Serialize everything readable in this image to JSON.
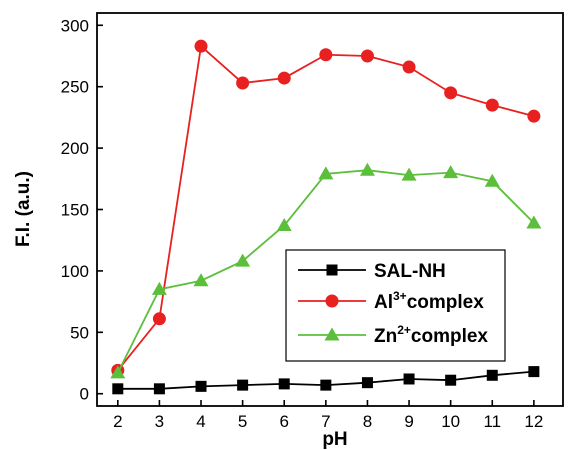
{
  "chart_data": {
    "type": "line",
    "xlabel": "pH",
    "ylabel": "F.I. (a.u.)",
    "xlim": [
      1.5,
      12.7
    ],
    "ylim": [
      -10,
      310
    ],
    "x_ticks": [
      2,
      3,
      4,
      5,
      6,
      7,
      8,
      9,
      10,
      11,
      12
    ],
    "y_ticks": [
      0,
      50,
      100,
      150,
      200,
      250,
      300
    ],
    "grid": false,
    "legend_position": "bottom-right",
    "series": [
      {
        "name": "SAL-NH",
        "marker": "square",
        "color": "#000000",
        "x": [
          2,
          3,
          4,
          5,
          6,
          7,
          8,
          9,
          10,
          11,
          12
        ],
        "y": [
          4,
          4,
          6,
          7,
          8,
          7,
          9,
          12,
          11,
          15,
          18
        ]
      },
      {
        "name": "Al3+complex",
        "legend_base": "Al",
        "legend_sup": "3+",
        "legend_rest": "complex",
        "marker": "circle",
        "color": "#e8201f",
        "x": [
          2,
          3,
          4,
          5,
          6,
          7,
          8,
          9,
          10,
          11,
          12
        ],
        "y": [
          19,
          61,
          283,
          253,
          257,
          276,
          275,
          266,
          245,
          235,
          226
        ]
      },
      {
        "name": "Zn2+complex",
        "legend_base": "Zn",
        "legend_sup": "2+",
        "legend_rest": "complex",
        "marker": "triangle",
        "color": "#5cbf3c",
        "x": [
          2,
          3,
          4,
          5,
          6,
          7,
          8,
          9,
          10,
          11,
          12
        ],
        "y": [
          17,
          85,
          92,
          108,
          137,
          179,
          182,
          178,
          180,
          173,
          139
        ]
      }
    ]
  }
}
